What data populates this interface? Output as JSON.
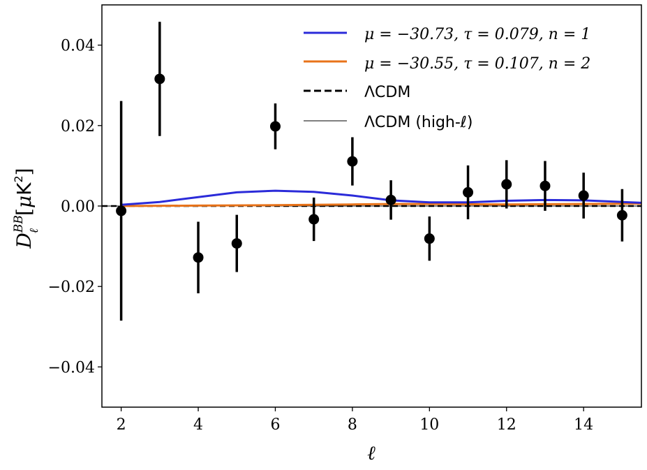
{
  "chart_data": {
    "type": "line",
    "xlabel": "ℓ",
    "ylabel_parts": {
      "symbol": "D",
      "sub": "ℓ",
      "sup": "BB",
      "unit_open": "[",
      "unit_mu": "μ",
      "unit_K": "K",
      "unit_sup": "2",
      "unit_close": "]"
    },
    "xlim": [
      1.5,
      15.5
    ],
    "ylim": [
      -0.05,
      0.05
    ],
    "xticks": [
      2,
      4,
      6,
      8,
      10,
      12,
      14
    ],
    "xtick_labels": [
      "2",
      "4",
      "6",
      "8",
      "10",
      "12",
      "14"
    ],
    "yticks": [
      -0.04,
      -0.02,
      0.0,
      0.02,
      0.04
    ],
    "ytick_labels": [
      "−0.04",
      "−0.02",
      "0.00",
      "0.02",
      "0.04"
    ],
    "legend_position": "top-right",
    "series": [
      {
        "name": "μ = −30.73, τ = 0.079, n = 1",
        "style": "solid",
        "color": "#2b2bd9",
        "x": [
          2,
          3,
          4,
          5,
          6,
          7,
          8,
          9,
          10,
          11,
          12,
          13,
          14,
          15,
          15.5
        ],
        "y": [
          0.0003,
          0.001,
          0.0022,
          0.0034,
          0.0038,
          0.0035,
          0.0026,
          0.0014,
          0.0009,
          0.0009,
          0.0013,
          0.0015,
          0.0014,
          0.001,
          0.0008
        ]
      },
      {
        "name": "μ = −30.55, τ = 0.107, n = 2",
        "style": "solid",
        "color": "#e8731a",
        "x": [
          2,
          4,
          6,
          8,
          9,
          10,
          12,
          14,
          15.5
        ],
        "y": [
          0.0,
          0.0001,
          0.0002,
          0.0004,
          0.0005,
          0.0005,
          0.0004,
          0.0005,
          0.0006
        ]
      },
      {
        "name": "ΛCDM",
        "style": "dashed",
        "color": "#000000",
        "x": [
          1.5,
          15.5
        ],
        "y": [
          0.0,
          0.0
        ]
      },
      {
        "name": "ΛCDM (high-ℓ)",
        "style": "thin",
        "color": "#000000",
        "x": [
          1.5,
          15.5
        ],
        "y": [
          0.0,
          0.0
        ]
      }
    ],
    "points": {
      "x": [
        2,
        3,
        4,
        5,
        6,
        7,
        8,
        9,
        10,
        11,
        12,
        13,
        14,
        15
      ],
      "y": [
        -0.0012,
        0.0316,
        -0.0128,
        -0.0093,
        0.0198,
        -0.0033,
        0.0111,
        0.0015,
        -0.0081,
        0.0034,
        0.0054,
        0.005,
        0.0026,
        -0.0023
      ],
      "err": [
        0.0273,
        0.0142,
        0.0089,
        0.0071,
        0.0057,
        0.0054,
        0.006,
        0.0049,
        0.0055,
        0.0067,
        0.006,
        0.0062,
        0.0057,
        0.0065
      ]
    }
  }
}
